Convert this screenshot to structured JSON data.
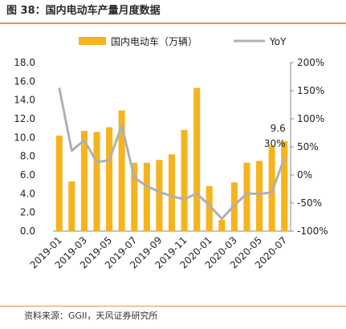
{
  "figure": {
    "title": "图 38：国内电动车产量月度数据",
    "source": "资料来源：GGII，天风证券研究所"
  },
  "colors": {
    "bar": "#f5b41e",
    "line": "#b0b0b0",
    "rule": "#e8963c"
  },
  "chart_data": {
    "type": "bar",
    "title": "",
    "categories": [
      "2019-01",
      "2019-02",
      "2019-03",
      "2019-04",
      "2019-05",
      "2019-06",
      "2019-07",
      "2019-08",
      "2019-09",
      "2019-10",
      "2019-11",
      "2019-12",
      "2020-01",
      "2020-02",
      "2020-03",
      "2020-04",
      "2020-05",
      "2020-06",
      "2020-07"
    ],
    "x_tick_labels": [
      "2019-01",
      "2019-03",
      "2019-05",
      "2019-07",
      "2019-09",
      "2019-11",
      "2020-01",
      "2020-03",
      "2020-05",
      "2020-07"
    ],
    "series": [
      {
        "name": "国内电动车（万辆）",
        "type": "bar",
        "axis": "left",
        "values": [
          10.2,
          5.3,
          10.7,
          10.6,
          11.1,
          12.9,
          7.3,
          7.3,
          7.6,
          8.2,
          10.8,
          15.3,
          4.8,
          1.2,
          5.2,
          7.3,
          7.5,
          9.1,
          9.6
        ]
      },
      {
        "name": "YoY",
        "type": "line",
        "axis": "right",
        "values": [
          155,
          43,
          62,
          23,
          26,
          88,
          -5,
          -20,
          -30,
          -38,
          -43,
          -33,
          -54,
          -78,
          -54,
          -33,
          -34,
          -31,
          30
        ]
      }
    ],
    "y_left": {
      "min": 0,
      "max": 18,
      "step": 2,
      "tick_labels": [
        "0.0",
        "2.0",
        "4.0",
        "6.0",
        "8.0",
        "10.0",
        "12.0",
        "14.0",
        "16.0",
        "18.0"
      ]
    },
    "y_right": {
      "min": -100,
      "max": 200,
      "step": 50,
      "tick_labels": [
        "-100%",
        "-50%",
        "0%",
        "50%",
        "100%",
        "150%",
        "200%"
      ]
    },
    "annotations": [
      {
        "text": "9.6",
        "category": "2020-07",
        "series": "bar"
      },
      {
        "text": "30%",
        "category": "2020-07",
        "series": "line"
      }
    ],
    "legend": {
      "placement": "top-center"
    },
    "grid": false
  }
}
